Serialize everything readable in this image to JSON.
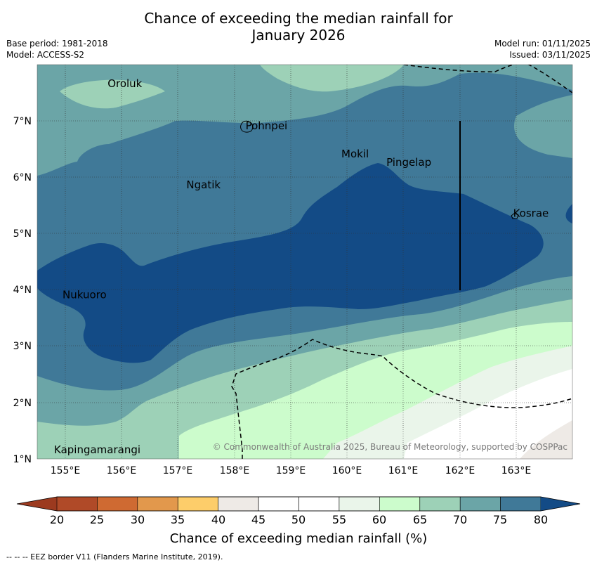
{
  "title": [
    "Chance of exceeding the median rainfall for",
    "January 2026"
  ],
  "meta_left": [
    "Base period: 1981-2018",
    "Model: ACCESS-S2"
  ],
  "meta_right": [
    "Model run: 01/11/2025",
    "Issued: 03/11/2025"
  ],
  "map": {
    "lon_ticks": [
      "155°E",
      "156°E",
      "157°E",
      "158°E",
      "159°E",
      "160°E",
      "161°E",
      "162°E",
      "163°E"
    ],
    "lat_ticks": [
      "7°N",
      "6°N",
      "5°N",
      "4°N",
      "3°N",
      "2°N",
      "1°N"
    ],
    "places": [
      {
        "name": "Oroluk",
        "lon": 155.75,
        "lat": 7.6
      },
      {
        "name": "Pohnpei",
        "lon": 158.2,
        "lat": 6.85
      },
      {
        "name": "Mokil",
        "lon": 159.9,
        "lat": 6.35
      },
      {
        "name": "Pingelap",
        "lon": 160.7,
        "lat": 6.2
      },
      {
        "name": "Ngatik",
        "lon": 157.15,
        "lat": 5.8
      },
      {
        "name": "Kosrae",
        "lon": 162.95,
        "lat": 5.3
      },
      {
        "name": "Nukuoro",
        "lon": 154.95,
        "lat": 3.85
      },
      {
        "name": "Kapingamarangi",
        "lon": 154.8,
        "lat": 1.1
      }
    ],
    "copyright": "© Commonwealth of Australia 2025, Bureau of Meteorology, supported by COSPPac"
  },
  "colorbar": {
    "labels": [
      "20",
      "25",
      "30",
      "35",
      "40",
      "45",
      "50",
      "55",
      "60",
      "65",
      "70",
      "75",
      "80"
    ],
    "colors": [
      "#b04a28",
      "#cf6a32",
      "#e2984c",
      "#fdcd6a",
      "#eeeae6",
      "#ffffff",
      "#ffffff",
      "#eaf5ea",
      "#ccfccc",
      "#9dd1b7",
      "#6ba5a7",
      "#407998"
    ],
    "under_color": "#9c3a1f",
    "over_color": "#134b86",
    "title": "Chance of exceeding median rainfall (%)"
  },
  "footnote": "--  --  -- EEZ border V11 (Flanders Marine Institute, 2019)."
}
